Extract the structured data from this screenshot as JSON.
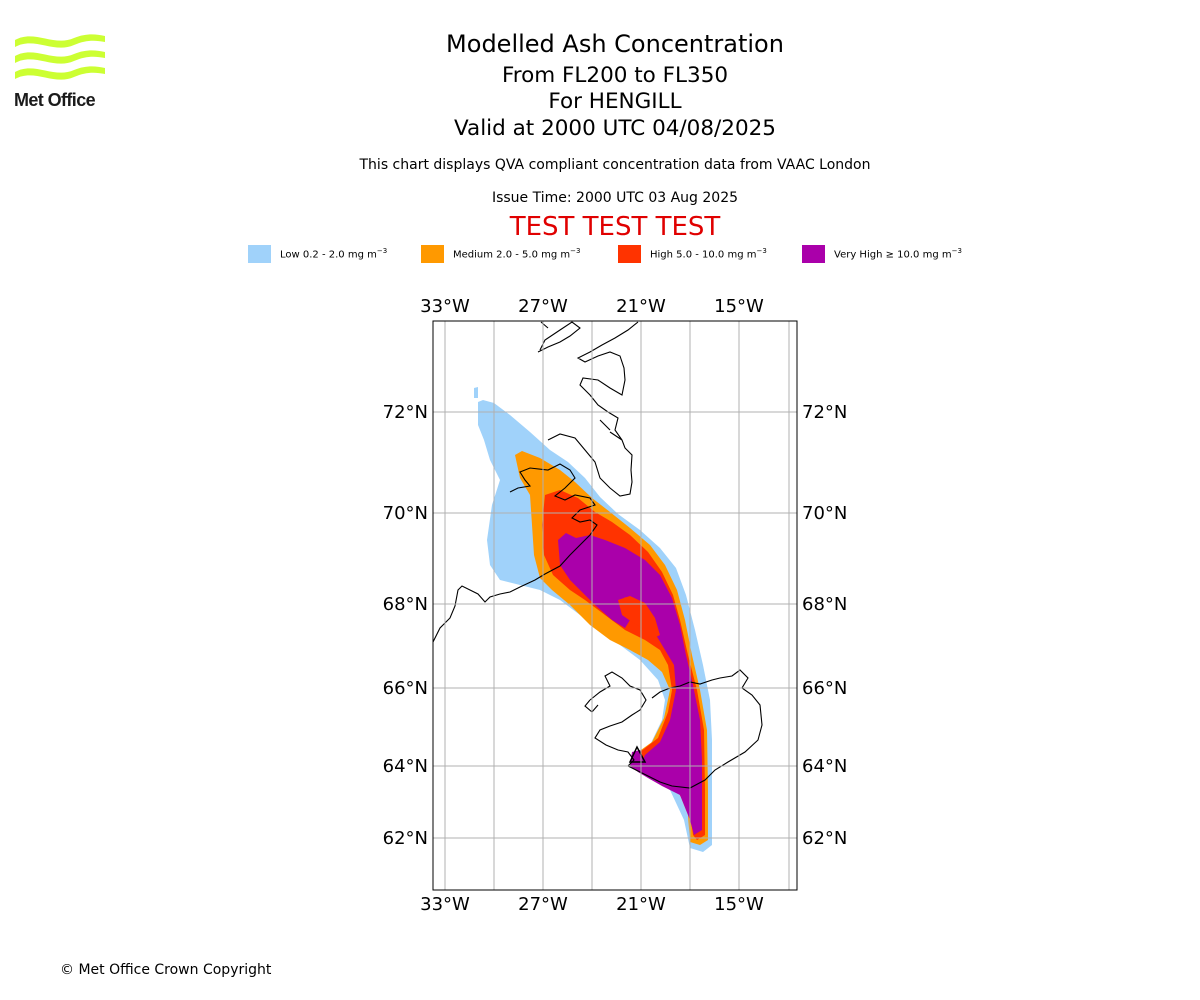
{
  "brand": {
    "name": "Met Office",
    "logo_color": "#ccff33",
    "logo_icon": "met-office-waves-icon"
  },
  "header": {
    "title": "Modelled Ash Concentration",
    "levels": "From FL200 to FL350",
    "volcano": "For HENGILL",
    "valid": "Valid at 2000 UTC 04/08/2025",
    "disclaimer": "This chart displays QVA compliant concentration data from VAAC London",
    "issue_time": "Issue Time: 2000 UTC 03 Aug 2025",
    "test_banner": "TEST TEST TEST",
    "test_color": "#e00000"
  },
  "legend": [
    {
      "label": "Low 0.2 - 2.0 mg m",
      "unit_exp": "−3",
      "color": "#a0d2fa"
    },
    {
      "label": "Medium 2.0 - 5.0 mg m",
      "unit_exp": "−3",
      "color": "#ff9900"
    },
    {
      "label": "High 5.0 - 10.0 mg m",
      "unit_exp": "−3",
      "color": "#ff3300"
    },
    {
      "label": "Very High ≥ 10.0 mg m",
      "unit_exp": "−3",
      "color": "#aa00aa"
    }
  ],
  "map": {
    "lon_labels": [
      "33°W",
      "27°W",
      "21°W",
      "15°W"
    ],
    "lat_labels": [
      "72°N",
      "70°N",
      "68°N",
      "66°N",
      "64°N",
      "62°N"
    ],
    "lon_extent": [
      -33.7,
      -11.5
    ],
    "lat_extent": [
      60.9,
      74.0
    ],
    "volcano_marker": "triangle-marker-icon",
    "gridline_color": "#b0b0b0"
  },
  "footer": {
    "copyright": "© Met Office Crown Copyright"
  }
}
